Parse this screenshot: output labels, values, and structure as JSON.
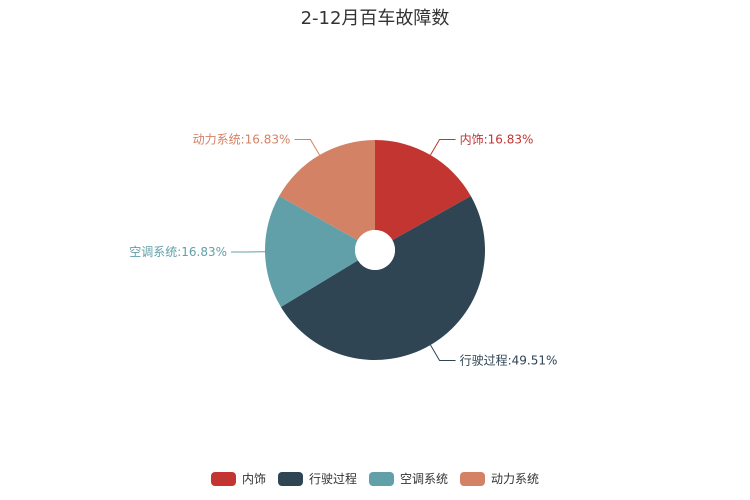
{
  "chart_data": {
    "type": "pie",
    "title": "2-12月百车故障数",
    "legend_position": "bottom",
    "slices": [
      {
        "name": "内饰",
        "value": 16.83,
        "label": "内饰:16.83%",
        "color": "#c23531"
      },
      {
        "name": "行驶过程",
        "value": 49.51,
        "label": "行驶过程:49.51%",
        "color": "#2f4554"
      },
      {
        "name": "空调系统",
        "value": 16.83,
        "label": "空调系统:16.83%",
        "color": "#61a0a8"
      },
      {
        "name": "动力系统",
        "value": 16.83,
        "label": "动力系统:16.83%",
        "color": "#d48265"
      }
    ]
  }
}
